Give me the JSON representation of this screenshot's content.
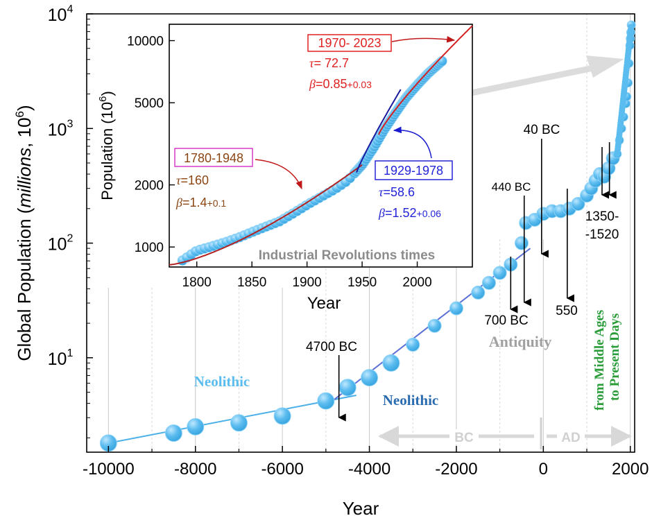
{
  "chart_data": [
    {
      "type": "scatter",
      "yscale": "log",
      "xlim": [
        -10500,
        2100
      ],
      "ylim": [
        1.5,
        10000
      ],
      "xlabel": "Year",
      "ylabel_main": "Global Population (",
      "ylabel_italic": "millions",
      "ylabel_tail": ", 10",
      "ylabel_sup": "6",
      "ylabel_close": ")",
      "x_ticks": [
        "-10000",
        "-8000",
        "-6000",
        "-4000",
        "-2000",
        "0",
        "2000"
      ],
      "x_tick_values": [
        -10000,
        -8000,
        -6000,
        -4000,
        -2000,
        0,
        2000
      ],
      "y_ticks": [
        {
          "value": 10,
          "base": "10",
          "exp": "1"
        },
        {
          "value": 100,
          "base": "10",
          "exp": "2"
        },
        {
          "value": 1000,
          "base": "10",
          "exp": "3"
        },
        {
          "value": 10000,
          "base": "10",
          "exp": "4"
        }
      ],
      "grid": "vertical",
      "colors": {
        "points": "#5bbcef",
        "point_edge": "#8fd3f7",
        "neolithic_fit": "#4ab0e8",
        "ancient_fit": "#5b6fd6",
        "plateau_fit": "#e05a5a",
        "arrow": "#000000",
        "bc_ad": "#d8d8d8",
        "antiquity": "#a0a0a0",
        "neolithic2": "#2b6cb0",
        "modern": "#2a9d3a"
      },
      "series": [
        {
          "points": [
            {
              "x": -10000,
              "y": 1.8
            },
            {
              "x": -8500,
              "y": 2.2
            },
            {
              "x": -8000,
              "y": 2.5
            },
            {
              "x": -7000,
              "y": 2.7
            },
            {
              "x": -6000,
              "y": 3.1
            },
            {
              "x": -5000,
              "y": 4.2
            },
            {
              "x": -4500,
              "y": 5.5
            },
            {
              "x": -4000,
              "y": 6.7
            },
            {
              "x": -3500,
              "y": 9.0
            },
            {
              "x": -3000,
              "y": 13
            },
            {
              "x": -2500,
              "y": 19
            },
            {
              "x": -2000,
              "y": 27
            },
            {
              "x": -1500,
              "y": 37
            },
            {
              "x": -1250,
              "y": 45
            },
            {
              "x": -1000,
              "y": 55
            },
            {
              "x": -750,
              "y": 65
            },
            {
              "x": -500,
              "y": 100
            },
            {
              "x": -400,
              "y": 150
            },
            {
              "x": -200,
              "y": 160
            },
            {
              "x": 0,
              "y": 180
            },
            {
              "x": 200,
              "y": 190
            },
            {
              "x": 400,
              "y": 190
            },
            {
              "x": 600,
              "y": 200
            },
            {
              "x": 800,
              "y": 220
            },
            {
              "x": 1000,
              "y": 260
            },
            {
              "x": 1100,
              "y": 300
            },
            {
              "x": 1200,
              "y": 350
            },
            {
              "x": 1300,
              "y": 400
            },
            {
              "x": 1400,
              "y": 380
            },
            {
              "x": 1500,
              "y": 450
            },
            {
              "x": 1600,
              "y": 550
            },
            {
              "x": 1700,
              "y": 600
            },
            {
              "x": 1750,
              "y": 790
            },
            {
              "x": 1800,
              "y": 1000
            },
            {
              "x": 1850,
              "y": 1260
            },
            {
              "x": 1900,
              "y": 1650
            },
            {
              "x": 1920,
              "y": 1900
            },
            {
              "x": 1950,
              "y": 2500
            },
            {
              "x": 1970,
              "y": 3700
            },
            {
              "x": 1990,
              "y": 5300
            },
            {
              "x": 2000,
              "y": 6100
            },
            {
              "x": 2010,
              "y": 6900
            },
            {
              "x": 2023,
              "y": 8000
            }
          ]
        }
      ],
      "fits": [
        {
          "from": [
            -10000,
            1.8
          ],
          "to": [
            -4300,
            4.7
          ]
        },
        {
          "from": [
            -5000,
            3.8
          ],
          "to": [
            -300,
            90
          ]
        },
        {
          "from": [
            -100,
            190
          ],
          "to": [
            700,
            190
          ]
        },
        {
          "from": [
            1300,
            420
          ],
          "to": [
            1550,
            420
          ]
        }
      ],
      "annotations": {
        "neolithic_1": "Neolithic",
        "neolithic_2": "Neolithic",
        "antiquity": "Antiquity",
        "bc": "BC",
        "ad": "AD",
        "bc4700": "4700 BC",
        "bc700": "700 BC",
        "bc440": "440 BC",
        "bc40": "40 BC",
        "ad550": "550",
        "range1350": "1350-",
        "range1520": "-1520",
        "modern_1": "from Middle Ages",
        "modern_2": "to Present Days"
      },
      "event_arrows_x": [
        -4700,
        -700,
        -440,
        -40,
        550,
        1350,
        1520
      ]
    },
    {
      "type": "scatter",
      "yscale": "log",
      "xlim": [
        1775,
        2050
      ],
      "ylim": [
        800,
        12000
      ],
      "xlabel": "Year",
      "ylabel_main": "Population (10",
      "ylabel_sup": "6",
      "ylabel_close": ")",
      "x_ticks": [
        "1800",
        "1850",
        "1900",
        "1950",
        "2000"
      ],
      "x_tick_values": [
        1800,
        1850,
        1900,
        1950,
        2000
      ],
      "y_ticks": [
        "1000",
        "2000",
        "5000",
        "10000"
      ],
      "y_tick_values": [
        1000,
        2000,
        5000,
        10000
      ],
      "title_bottom": "Industrial Revolutions times",
      "points": [
        {
          "x": 1787,
          "y": 860
        },
        {
          "x": 1800,
          "y": 960
        },
        {
          "x": 1812,
          "y": 1000
        },
        {
          "x": 1825,
          "y": 1050
        },
        {
          "x": 1838,
          "y": 1110
        },
        {
          "x": 1850,
          "y": 1180
        },
        {
          "x": 1862,
          "y": 1250
        },
        {
          "x": 1875,
          "y": 1330
        },
        {
          "x": 1888,
          "y": 1460
        },
        {
          "x": 1900,
          "y": 1600
        },
        {
          "x": 1912,
          "y": 1740
        },
        {
          "x": 1925,
          "y": 1900
        },
        {
          "x": 1937,
          "y": 2100
        },
        {
          "x": 1950,
          "y": 2500
        },
        {
          "x": 1960,
          "y": 3000
        },
        {
          "x": 1970,
          "y": 3700
        },
        {
          "x": 1980,
          "y": 4450
        },
        {
          "x": 1990,
          "y": 5300
        },
        {
          "x": 2000,
          "y": 6100
        },
        {
          "x": 2010,
          "y": 6950
        },
        {
          "x": 2023,
          "y": 8000
        }
      ],
      "fits": [
        {
          "name": "1780-1948",
          "color": "#b22222",
          "label_color": "#8b4513",
          "box_color": "#d63ac8",
          "tau": "=160",
          "beta": "=1.4",
          "err": "+0.1",
          "from": 1775,
          "to": 1950
        },
        {
          "name": "1929-1978",
          "color": "#1a1aa0",
          "label_color": "#2323d8",
          "box_color": "#2323d8",
          "tau": "=58.6",
          "beta": "=1.52",
          "err": "+0.06",
          "from": 1945,
          "to": 1985
        },
        {
          "name": "1970- 2023",
          "color": "#d42020",
          "label_color": "#e02020",
          "box_color": "#e02020",
          "tau": "= 72.7",
          "beta": "=0.85",
          "err": "+0.03",
          "from": 1965,
          "to": 2050
        }
      ],
      "tau_symbol": "τ",
      "beta_symbol": "β"
    }
  ]
}
